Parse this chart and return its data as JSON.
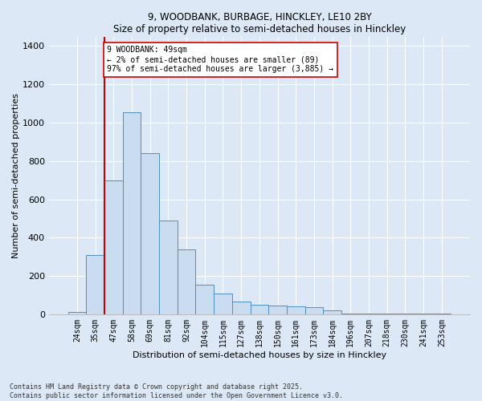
{
  "title1": "9, WOODBANK, BURBAGE, HINCKLEY, LE10 2BY",
  "title2": "Size of property relative to semi-detached houses in Hinckley",
  "xlabel": "Distribution of semi-detached houses by size in Hinckley",
  "ylabel": "Number of semi-detached properties",
  "categories": [
    "24sqm",
    "35sqm",
    "47sqm",
    "58sqm",
    "69sqm",
    "81sqm",
    "92sqm",
    "104sqm",
    "115sqm",
    "127sqm",
    "138sqm",
    "150sqm",
    "161sqm",
    "173sqm",
    "184sqm",
    "196sqm",
    "207sqm",
    "218sqm",
    "230sqm",
    "241sqm",
    "253sqm"
  ],
  "values": [
    10,
    310,
    700,
    1055,
    840,
    490,
    340,
    155,
    110,
    65,
    50,
    45,
    40,
    35,
    20,
    5,
    5,
    5,
    5,
    2,
    2
  ],
  "bar_color": "#c9dcf0",
  "bar_edge_color": "#4f8fbf",
  "vline_x": 1.5,
  "vline_color": "#cc0000",
  "annotation_text": "9 WOODBANK: 49sqm\n← 2% of semi-detached houses are smaller (89)\n97% of semi-detached houses are larger (3,885) →",
  "annotation_box_color": "#ffffff",
  "annotation_box_edge": "#cc0000",
  "footer": "Contains HM Land Registry data © Crown copyright and database right 2025.\nContains public sector information licensed under the Open Government Licence v3.0.",
  "bg_color": "#dce8f5",
  "plot_bg_color": "#dce8f5",
  "ylim": [
    0,
    1450
  ],
  "yticks": [
    0,
    200,
    400,
    600,
    800,
    1000,
    1200,
    1400
  ],
  "grid_color": "#ffffff"
}
